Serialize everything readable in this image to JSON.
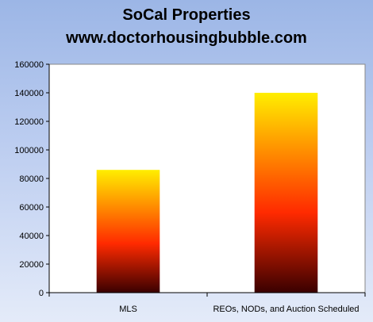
{
  "chart_data": {
    "type": "bar",
    "title": "SoCal Properties",
    "subtitle": "www.doctorhousingbubble.com",
    "categories": [
      "MLS",
      "REOs, NODs, and Auction Scheduled"
    ],
    "values": [
      86000,
      140000
    ],
    "ylim": [
      0,
      160000
    ],
    "yticks": [
      0,
      20000,
      40000,
      60000,
      80000,
      100000,
      120000,
      140000,
      160000
    ],
    "xlabel": "",
    "ylabel": "",
    "grid": false,
    "legend": "none",
    "colors": {
      "bar_top": "#ffee00",
      "bar_mid": "#ff2a00",
      "bar_bottom": "#3a0000",
      "plot_background": "#ffffff",
      "background_top": "#9cb6e6",
      "background_bottom": "#e4ebf9"
    }
  }
}
